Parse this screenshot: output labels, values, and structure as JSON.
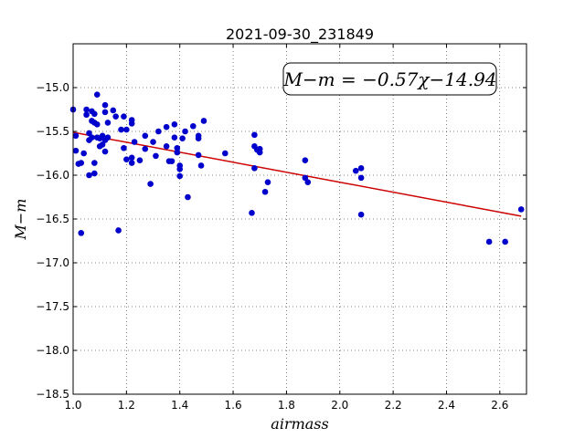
{
  "chart_data": {
    "type": "scatter",
    "title": "2021-09-30_231849",
    "xlabel": "airmass",
    "ylabel": "M−m",
    "xlim": [
      1.0,
      2.7
    ],
    "ylim": [
      -18.5,
      -14.5
    ],
    "x_ticks": [
      1.0,
      1.2,
      1.4,
      1.6,
      1.8,
      2.0,
      2.2,
      2.4,
      2.6
    ],
    "x_tick_labels": [
      "1.0",
      "1.2",
      "1.4",
      "1.6",
      "1.8",
      "2.0",
      "2.2",
      "2.4",
      "2.6"
    ],
    "y_ticks": [
      -15.0,
      -15.5,
      -16.0,
      -16.5,
      -17.0,
      -17.5,
      -18.0,
      -18.5
    ],
    "y_tick_labels": [
      "−15.0",
      "−15.5",
      "−16.0",
      "−16.5",
      "−17.0",
      "−17.5",
      "−18.0",
      "−18.5"
    ],
    "grid": true,
    "annotation": "M−m = −0.57χ−14.94",
    "fit": {
      "slope": -0.57,
      "intercept": -14.94,
      "color": "#cc0000"
    },
    "point_color": "#0000cc",
    "points": [
      [
        1.0,
        -15.25
      ],
      [
        1.01,
        -15.55
      ],
      [
        1.01,
        -15.72
      ],
      [
        1.02,
        -15.87
      ],
      [
        1.03,
        -15.86
      ],
      [
        1.03,
        -16.66
      ],
      [
        1.04,
        -15.75
      ],
      [
        1.05,
        -15.31
      ],
      [
        1.05,
        -15.25
      ],
      [
        1.06,
        -15.52
      ],
      [
        1.06,
        -15.6
      ],
      [
        1.07,
        -15.27
      ],
      [
        1.07,
        -15.38
      ],
      [
        1.07,
        -15.57
      ],
      [
        1.06,
        -16.0
      ],
      [
        1.08,
        -15.3
      ],
      [
        1.08,
        -15.4
      ],
      [
        1.08,
        -15.86
      ],
      [
        1.08,
        -15.98
      ],
      [
        1.09,
        -15.08
      ],
      [
        1.09,
        -15.42
      ],
      [
        1.09,
        -15.57
      ],
      [
        1.1,
        -15.58
      ],
      [
        1.1,
        -15.67
      ],
      [
        1.11,
        -15.55
      ],
      [
        1.11,
        -15.65
      ],
      [
        1.12,
        -15.2
      ],
      [
        1.12,
        -15.28
      ],
      [
        1.12,
        -15.6
      ],
      [
        1.12,
        -15.73
      ],
      [
        1.13,
        -15.4
      ],
      [
        1.13,
        -15.57
      ],
      [
        1.15,
        -15.26
      ],
      [
        1.16,
        -15.33
      ],
      [
        1.17,
        -16.63
      ],
      [
        1.18,
        -15.48
      ],
      [
        1.19,
        -15.33
      ],
      [
        1.19,
        -15.69
      ],
      [
        1.2,
        -15.48
      ],
      [
        1.2,
        -15.82
      ],
      [
        1.22,
        -15.37
      ],
      [
        1.22,
        -15.41
      ],
      [
        1.22,
        -15.8
      ],
      [
        1.22,
        -15.86
      ],
      [
        1.23,
        -15.62
      ],
      [
        1.25,
        -15.83
      ],
      [
        1.27,
        -15.55
      ],
      [
        1.27,
        -15.7
      ],
      [
        1.29,
        -16.1
      ],
      [
        1.3,
        -15.62
      ],
      [
        1.31,
        -15.78
      ],
      [
        1.32,
        -15.5
      ],
      [
        1.35,
        -15.45
      ],
      [
        1.35,
        -15.67
      ],
      [
        1.36,
        -15.84
      ],
      [
        1.37,
        -15.84
      ],
      [
        1.38,
        -15.42
      ],
      [
        1.38,
        -15.57
      ],
      [
        1.39,
        -15.69
      ],
      [
        1.39,
        -15.74
      ],
      [
        1.4,
        -15.89
      ],
      [
        1.4,
        -15.93
      ],
      [
        1.4,
        -16.01
      ],
      [
        1.41,
        -15.58
      ],
      [
        1.42,
        -15.5
      ],
      [
        1.43,
        -16.25
      ],
      [
        1.45,
        -15.44
      ],
      [
        1.47,
        -15.55
      ],
      [
        1.47,
        -15.58
      ],
      [
        1.47,
        -15.77
      ],
      [
        1.48,
        -15.89
      ],
      [
        1.49,
        -15.38
      ],
      [
        1.57,
        -15.75
      ],
      [
        1.67,
        -16.43
      ],
      [
        1.68,
        -15.54
      ],
      [
        1.68,
        -15.67
      ],
      [
        1.68,
        -15.92
      ],
      [
        1.69,
        -15.71
      ],
      [
        1.7,
        -15.7
      ],
      [
        1.7,
        -15.74
      ],
      [
        1.72,
        -16.19
      ],
      [
        1.73,
        -16.08
      ],
      [
        1.87,
        -15.83
      ],
      [
        1.87,
        -16.03
      ],
      [
        1.88,
        -16.08
      ],
      [
        2.06,
        -15.95
      ],
      [
        2.08,
        -15.92
      ],
      [
        2.08,
        -16.03
      ],
      [
        2.08,
        -16.45
      ],
      [
        2.56,
        -16.76
      ],
      [
        2.62,
        -16.76
      ],
      [
        2.68,
        -16.39
      ]
    ]
  }
}
